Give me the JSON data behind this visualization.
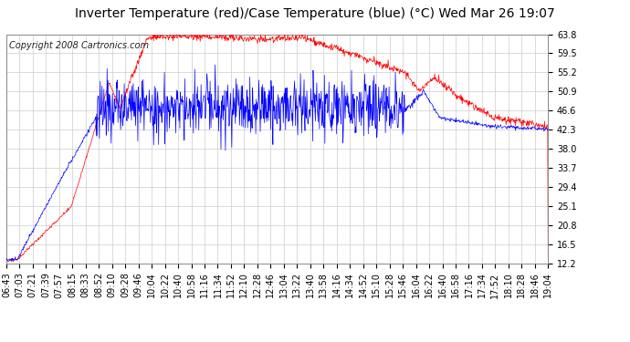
{
  "title": "Inverter Temperature (red)/Case Temperature (blue) (°C) Wed Mar 26 19:07",
  "copyright": "Copyright 2008 Cartronics.com",
  "yticks": [
    12.2,
    16.5,
    20.8,
    25.1,
    29.4,
    33.7,
    38.0,
    42.3,
    46.6,
    50.9,
    55.2,
    59.5,
    63.8
  ],
  "ymin": 12.2,
  "ymax": 63.8,
  "red_color": "#ff0000",
  "blue_color": "#0000ff",
  "bg_color": "#ffffff",
  "plot_bg_color": "#ffffff",
  "grid_color": "#cccccc",
  "xtick_labels": [
    "06:43",
    "07:03",
    "07:21",
    "07:39",
    "07:57",
    "08:15",
    "08:33",
    "08:52",
    "09:10",
    "09:28",
    "09:46",
    "10:04",
    "10:22",
    "10:40",
    "10:58",
    "11:16",
    "11:34",
    "11:52",
    "12:10",
    "12:28",
    "12:46",
    "13:04",
    "13:22",
    "13:40",
    "13:58",
    "14:16",
    "14:34",
    "14:52",
    "15:10",
    "15:28",
    "15:46",
    "16:04",
    "16:22",
    "16:40",
    "16:58",
    "17:16",
    "17:34",
    "17:52",
    "18:10",
    "18:28",
    "18:46",
    "19:04"
  ],
  "title_fontsize": 10,
  "tick_fontsize": 7,
  "copyright_fontsize": 7
}
